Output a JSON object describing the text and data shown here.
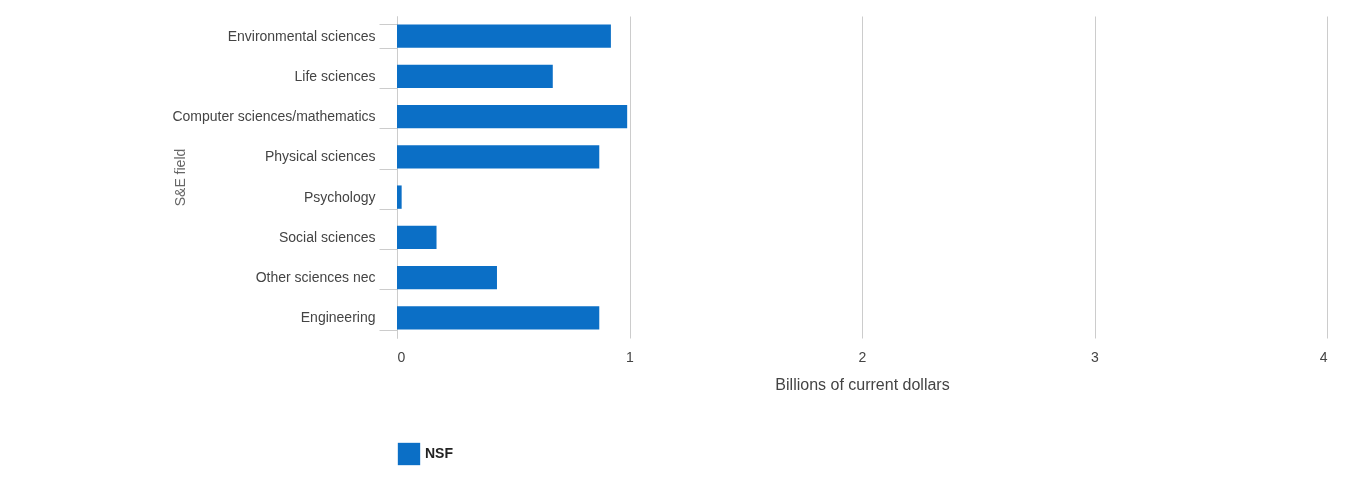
{
  "chart_data": {
    "type": "bar",
    "orientation": "horizontal",
    "categories": [
      "Environmental sciences",
      "Life sciences",
      "Computer sciences/mathematics",
      "Physical sciences",
      "Psychology",
      "Social sciences",
      "Other sciences nec",
      "Engineering"
    ],
    "series": [
      {
        "name": "NSF",
        "color": "#0b6fc6",
        "values": [
          0.92,
          0.67,
          0.99,
          0.87,
          0.02,
          0.17,
          0.43,
          0.87
        ]
      }
    ],
    "xlabel": "Billions of current dollars",
    "ylabel": "S&E field",
    "xlim": [
      0,
      4
    ],
    "xticks": [
      0,
      1,
      2,
      3,
      4
    ],
    "grid": "x",
    "legend": "bottom"
  }
}
